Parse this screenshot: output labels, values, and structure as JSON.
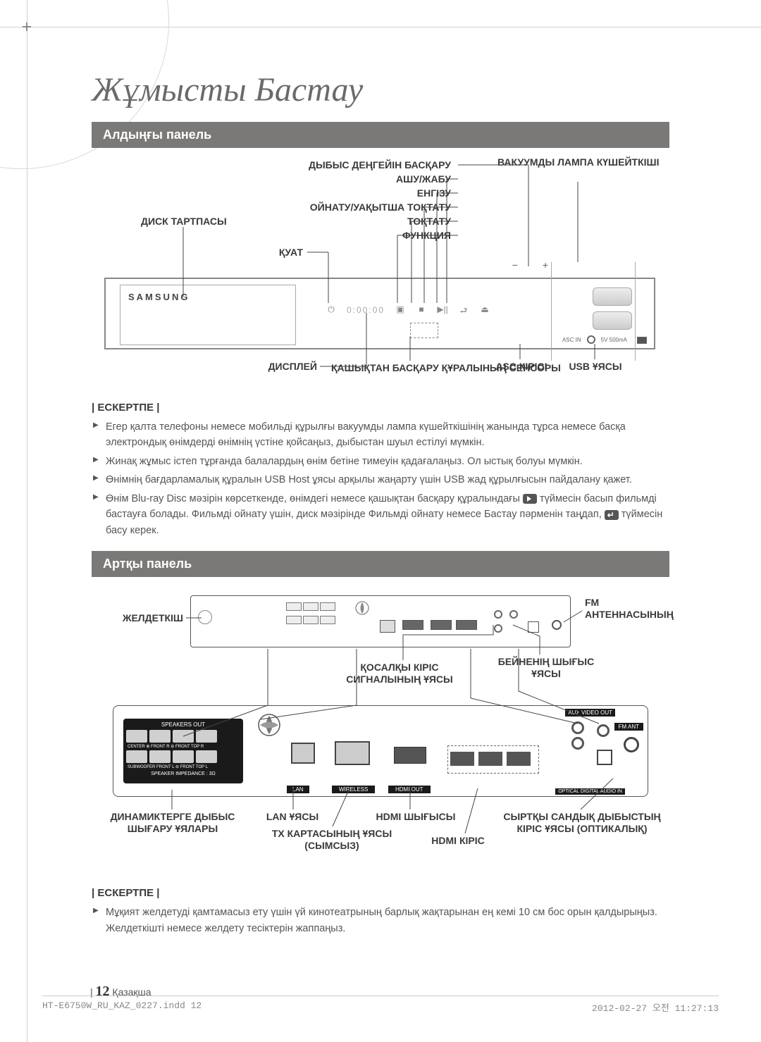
{
  "chapter_title": "Жұмысты Бастау",
  "sections": {
    "front": "Алдыңғы панель",
    "rear": "Артқы панель"
  },
  "front_labels": {
    "volume": "ДЫБЫС ДЕҢГЕЙІН БАСҚАРУ",
    "open_close": "АШУ/ЖАБУ",
    "enter": "ЕНГІЗУ",
    "play_pause": "ОЙНАТУ/УАҚЫТША ТОҚТАТУ",
    "stop": "ТОҚТАТУ",
    "disc_tray": "ДИСК ТАРТПАСЫ",
    "function": "ФУНКЦИЯ",
    "power": "ҚУАТ",
    "vacuum": "ВАКУУМДЫ ЛАМПА КҮШЕЙТКІШІ",
    "display": "ДИСПЛЕЙ",
    "remote_sensor": "ҚАШЫҚТАН БАСҚАРУ ҚҰРАЛЫНЫҢ СЕНСОРЫ",
    "asc": "ASC КІРІСІ",
    "usb": "USB ҰЯСЫ",
    "brand": "SAMSUNG",
    "vol_minus": "−",
    "vol_plus": "+",
    "asc_in": "ASC IN",
    "dc5v": "5V 500mA"
  },
  "note_heading": "| ЕСКЕРТПЕ |",
  "front_notes": [
    "Егер қалта телефоны немесе мобильді құрылғы вакуумды лампа күшейткішінің жанында тұрса немесе басқа электрондық өнімдерді өнімнің үстіне қойсаңыз, дыбыстан шуыл естілуі мүмкін.",
    "Жинақ жұмыс істеп тұрғанда балалардың өнім бетіне тимеуін қадағалаңыз. Ол ыстық болуы мүмкін.",
    "Өнімнің бағдарламалық құралын USB Host ұясы арқылы жаңарту үшін USB жад құрылғысын пайдалану қажет.",
    "Өнім Blu-ray Disc мәзірін көрсеткенде, өнімдегі немесе қашықтан басқару құралындағы __PLAY__ түймесін басып фильмді бастауға болады. Фильмді ойнату үшін, диск мәзірінде Фильмді ойнату немесе Бастау пәрменін таңдап, __ENTER__ түймесін басу керек."
  ],
  "rear_labels": {
    "fan": "ЖЕЛДЕТКІШ",
    "fm": "FM АНТЕННАСЫНЫҢ",
    "aux": "ҚОСАЛҚЫ КІРІС СИГНАЛЫНЫҢ ҰЯСЫ",
    "video_out": "БЕЙНЕНІҢ ШЫҒЫС ҰЯСЫ",
    "speakers": "ДИНАМИКТЕРГЕ ДЫБЫС ШЫҒАРУ ҰЯЛАРЫ",
    "lan": "LAN ҰЯСЫ",
    "tx": "TX КАРТАСЫНЫҢ ҰЯСЫ (СЫМСЫЗ)",
    "hdmi_out": "HDMI ШЫҒЫСЫ",
    "hdmi_in": "HDMI КІРІС",
    "optical": "СЫРТҚЫ САНДЫҚ ДЫБЫСТЫҢ КІРІС ҰЯСЫ (ОПТИКАЛЫҚ)"
  },
  "rear_chip": {
    "spk_out": "SPEAKERS OUT",
    "impedance": "SPEAKER IMPEDANCE : 3Ω",
    "lan": "LAN",
    "wireless": "WIRELESS",
    "hdmi_out": "HDMI OUT",
    "aux": "AUX IN",
    "vout": "VIDEO OUT",
    "fm": "FM ANT",
    "opt": "OPTICAL DIGITAL AUDIO IN"
  },
  "rear_notes": [
    "Мұқият желдетуді қамтамасыз ету үшін үй кинотеатрының барлық жақтарынан ең кемі 10 см бос орын қалдырыңыз. Желдеткішті немесе желдету тесіктерін жаппаңыз."
  ],
  "page_number": "12",
  "page_lang": "Қазақша",
  "footer": {
    "file": "HT-E6750W_RU_KAZ_0227.indd   12",
    "date": "2012-02-27   오전 11:27:13"
  },
  "colors": {
    "section_bar": "#7a7978",
    "text": "#4a4a4a",
    "line": "#444444"
  }
}
